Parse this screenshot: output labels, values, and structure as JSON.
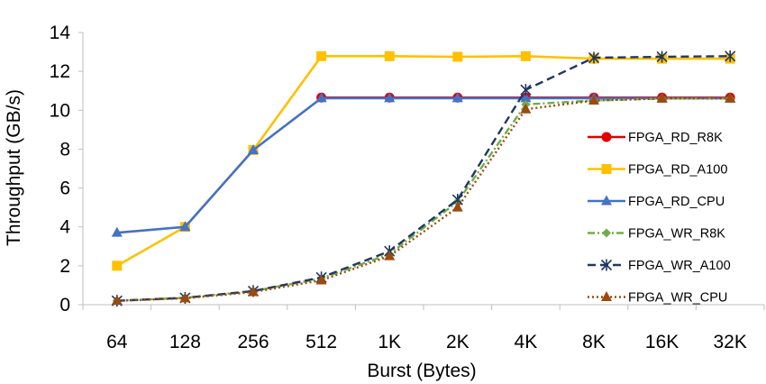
{
  "chart_data": {
    "type": "line",
    "title": "",
    "xlabel": "Burst (Bytes)",
    "ylabel": "Throughput (GB/s)",
    "categories": [
      "64",
      "128",
      "256",
      "512",
      "1K",
      "2K",
      "4K",
      "8K",
      "16K",
      "32K"
    ],
    "ylim": [
      0,
      14
    ],
    "yticks": [
      0,
      2,
      4,
      6,
      8,
      10,
      12,
      14
    ],
    "grid": "none",
    "legend_position": "right",
    "series": [
      {
        "name": "FPGA_RD_R8K",
        "color": "#e00000",
        "marker": "circle",
        "line": "solid",
        "values": [
          null,
          null,
          null,
          10.65,
          10.65,
          10.65,
          10.65,
          10.65,
          10.65,
          10.65
        ]
      },
      {
        "name": "FPGA_RD_A100",
        "color": "#ffc000",
        "marker": "square",
        "line": "solid",
        "values": [
          2.0,
          4.0,
          7.95,
          12.78,
          12.78,
          12.75,
          12.78,
          12.65,
          12.65,
          12.65
        ]
      },
      {
        "name": "FPGA_RD_CPU",
        "color": "#4472c4",
        "marker": "triangle",
        "line": "solid",
        "values": [
          3.7,
          4.0,
          7.95,
          10.62,
          10.62,
          10.62,
          10.62,
          10.62,
          10.62,
          10.62
        ]
      },
      {
        "name": "FPGA_WR_R8K",
        "color": "#70ad47",
        "marker": "diamond",
        "line": "dashdot",
        "values": [
          0.2,
          0.35,
          0.7,
          1.35,
          2.6,
          5.3,
          10.3,
          10.5,
          10.6,
          10.6
        ]
      },
      {
        "name": "FPGA_WR_A100",
        "color": "#203864",
        "marker": "asterisk",
        "line": "dash",
        "values": [
          0.2,
          0.35,
          0.7,
          1.4,
          2.75,
          5.4,
          11.05,
          12.7,
          12.75,
          12.78
        ]
      },
      {
        "name": "FPGA_WR_CPU",
        "color": "#9c4a0e",
        "marker": "triangle",
        "line": "dot",
        "values": [
          0.2,
          0.33,
          0.65,
          1.25,
          2.5,
          5.0,
          10.05,
          10.5,
          10.6,
          10.6
        ]
      }
    ]
  }
}
